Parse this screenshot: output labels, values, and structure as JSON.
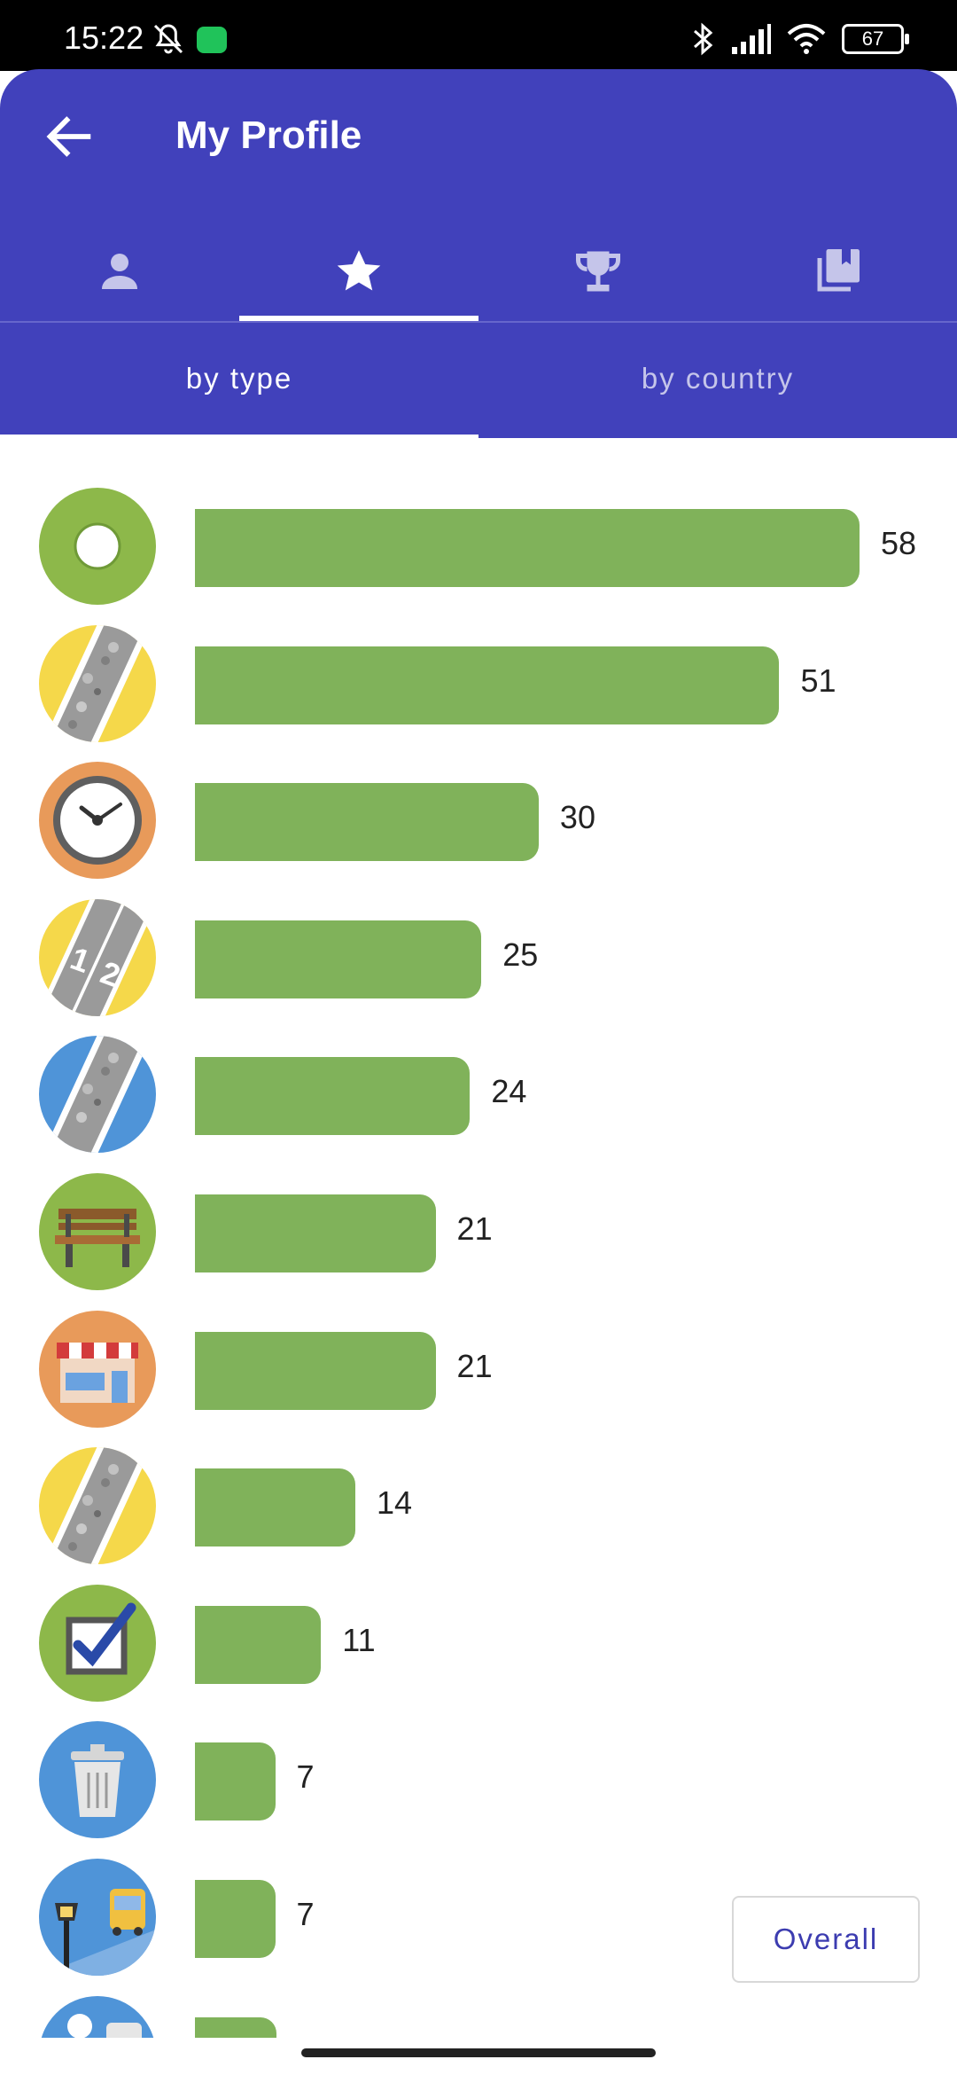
{
  "status_bar": {
    "time": "15:22",
    "battery": "67"
  },
  "app_bar": {
    "title": "My Profile"
  },
  "tabs": [
    {
      "name": "profile",
      "icon": "person-icon",
      "selected": false
    },
    {
      "name": "statistics",
      "icon": "star-icon",
      "selected": true
    },
    {
      "name": "achievements",
      "icon": "trophy-icon",
      "selected": false
    },
    {
      "name": "links",
      "icon": "library-icon",
      "selected": false
    }
  ],
  "subtabs": [
    {
      "label": "by type",
      "selected": true
    },
    {
      "label": "by country",
      "selected": false
    }
  ],
  "stats": [
    {
      "icon": "ring-icon",
      "value": "58"
    },
    {
      "icon": "road-surface-icon",
      "value": "51"
    },
    {
      "icon": "clock-icon",
      "value": "30"
    },
    {
      "icon": "lane-count-icon",
      "value": "25"
    },
    {
      "icon": "path-surface-icon",
      "value": "24"
    },
    {
      "icon": "bench-icon",
      "value": "21"
    },
    {
      "icon": "shop-icon",
      "value": "21"
    },
    {
      "icon": "road-surface-icon",
      "value": "14"
    },
    {
      "icon": "checkbox-icon",
      "value": "11"
    },
    {
      "icon": "trash-bin-icon",
      "value": "7"
    },
    {
      "icon": "bus-stop-lamp-icon",
      "value": "7"
    },
    {
      "icon": "bus-stop-icon",
      "value": ""
    }
  ],
  "chart_data": {
    "type": "bar",
    "values": [
      58,
      51,
      30,
      25,
      24,
      21,
      21,
      14,
      11,
      7,
      7
    ],
    "orientation": "horizontal"
  },
  "overall_button": {
    "label": "Overall"
  },
  "colors": {
    "primary": "#4141bb",
    "bar": "#80b25a"
  }
}
